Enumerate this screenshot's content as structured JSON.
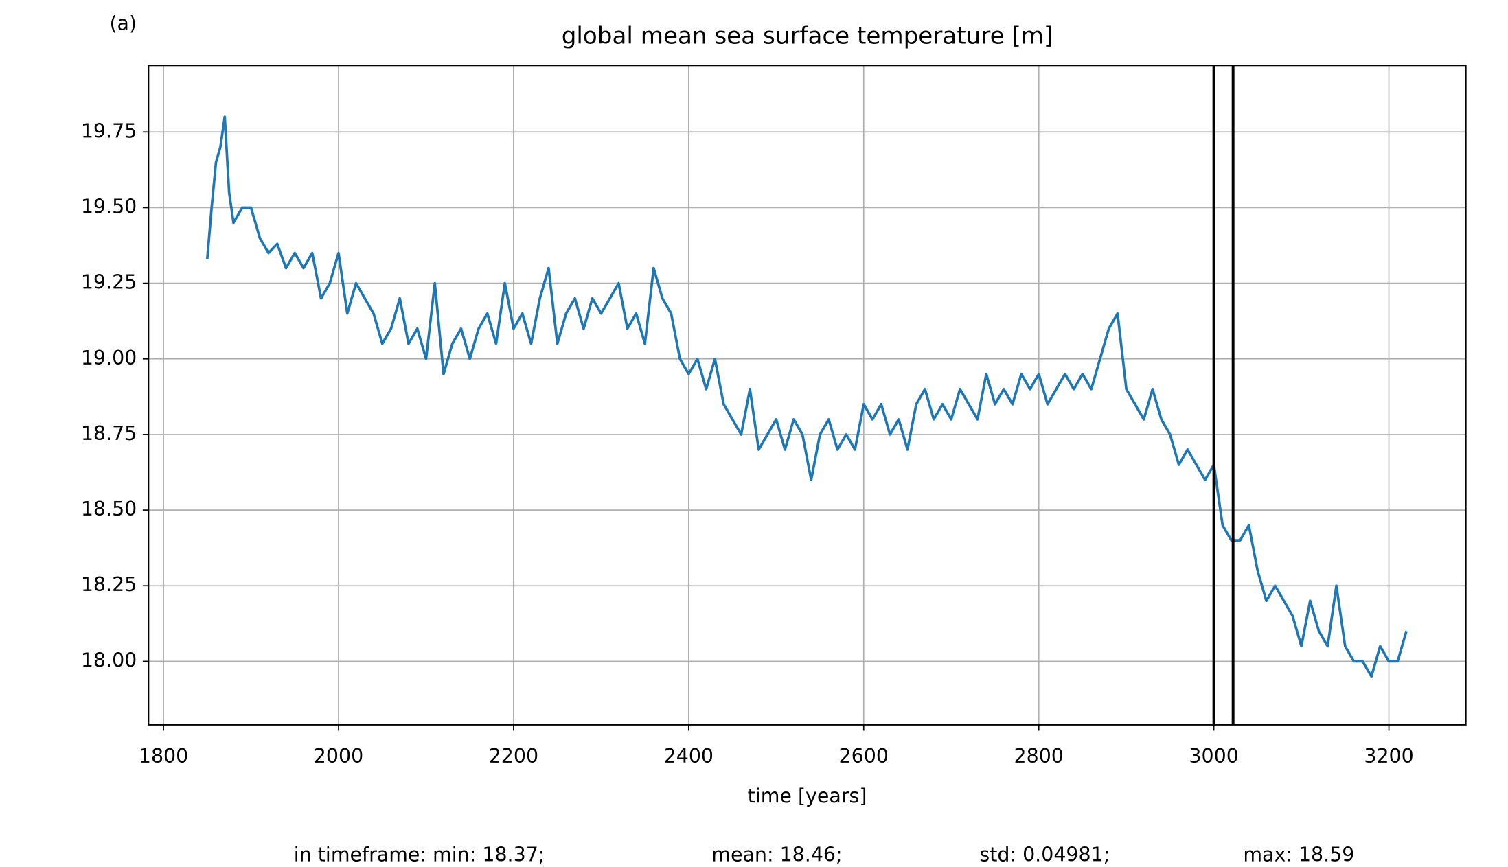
{
  "chart_data": {
    "type": "line",
    "panel_label": "(a)",
    "title": "global mean sea surface temperature [m]",
    "x_label": "time [years]",
    "footer": [
      "in timeframe: min: 18.37;",
      "mean: 18.46;",
      "std: 0.04981;",
      "max: 18.59"
    ],
    "x": [
      1850,
      1855,
      1860,
      1865,
      1870,
      1875,
      1880,
      1890,
      1900,
      1910,
      1920,
      1930,
      1940,
      1950,
      1960,
      1970,
      1980,
      1990,
      2000,
      2010,
      2020,
      2030,
      2040,
      2050,
      2060,
      2070,
      2080,
      2090,
      2100,
      2110,
      2120,
      2130,
      2140,
      2150,
      2160,
      2170,
      2180,
      2190,
      2200,
      2210,
      2220,
      2230,
      2240,
      2250,
      2260,
      2270,
      2280,
      2290,
      2300,
      2310,
      2320,
      2330,
      2340,
      2350,
      2360,
      2370,
      2380,
      2390,
      2400,
      2410,
      2420,
      2430,
      2440,
      2450,
      2460,
      2470,
      2480,
      2490,
      2500,
      2510,
      2520,
      2530,
      2540,
      2550,
      2560,
      2570,
      2580,
      2590,
      2600,
      2610,
      2620,
      2630,
      2640,
      2650,
      2660,
      2670,
      2680,
      2690,
      2700,
      2710,
      2720,
      2730,
      2740,
      2750,
      2760,
      2770,
      2780,
      2790,
      2800,
      2810,
      2820,
      2830,
      2840,
      2850,
      2860,
      2870,
      2880,
      2890,
      2900,
      2910,
      2920,
      2930,
      2940,
      2950,
      2960,
      2970,
      2980,
      2990,
      3000,
      3010,
      3020,
      3030,
      3040,
      3050,
      3060,
      3070,
      3080,
      3090,
      3100,
      3110,
      3120,
      3130,
      3140,
      3150,
      3160,
      3170,
      3180,
      3190,
      3200,
      3210,
      3220
    ],
    "series": [
      {
        "color": "#1f77b4",
        "values": [
          19.33,
          19.5,
          19.65,
          19.7,
          19.8,
          19.55,
          19.45,
          19.5,
          19.5,
          19.4,
          19.35,
          19.38,
          19.3,
          19.35,
          19.3,
          19.35,
          19.2,
          19.25,
          19.35,
          19.15,
          19.25,
          19.2,
          19.15,
          19.05,
          19.1,
          19.2,
          19.05,
          19.1,
          19.0,
          19.25,
          18.95,
          19.05,
          19.1,
          19.0,
          19.1,
          19.15,
          19.05,
          19.25,
          19.1,
          19.15,
          19.05,
          19.2,
          19.3,
          19.05,
          19.15,
          19.2,
          19.1,
          19.2,
          19.15,
          19.2,
          19.25,
          19.1,
          19.15,
          19.05,
          19.3,
          19.2,
          19.15,
          19.0,
          18.95,
          19.0,
          18.9,
          19.0,
          18.85,
          18.8,
          18.75,
          18.9,
          18.7,
          18.75,
          18.8,
          18.7,
          18.8,
          18.75,
          18.6,
          18.75,
          18.8,
          18.7,
          18.75,
          18.7,
          18.85,
          18.8,
          18.85,
          18.75,
          18.8,
          18.7,
          18.85,
          18.9,
          18.8,
          18.85,
          18.8,
          18.9,
          18.85,
          18.8,
          18.95,
          18.85,
          18.9,
          18.85,
          18.95,
          18.9,
          18.95,
          18.85,
          18.9,
          18.95,
          18.9,
          18.95,
          18.9,
          19.0,
          19.1,
          19.15,
          18.9,
          18.85,
          18.8,
          18.9,
          18.8,
          18.75,
          18.65,
          18.7,
          18.65,
          18.6,
          18.65,
          18.45,
          18.4,
          18.4,
          18.45,
          18.3,
          18.2,
          18.25,
          18.2,
          18.15,
          18.05,
          18.2,
          18.1,
          18.05,
          18.25,
          18.05,
          18.0,
          18.0,
          17.95,
          18.05,
          18.0,
          18.0,
          18.1
        ]
      }
    ],
    "vlines": [
      3000,
      3022
    ],
    "vline_color": "#000000",
    "xlim": [
      1783,
      3288
    ],
    "ylim": [
      17.79,
      19.97
    ],
    "xticks": [
      1800,
      2000,
      2200,
      2400,
      2600,
      2800,
      3000,
      3200
    ],
    "yticks": [
      {
        "value": 18,
        "label": "18.00"
      },
      18.25,
      {
        "value": 18.5,
        "label": "18.50"
      },
      18.75,
      {
        "value": 19,
        "label": "19.00"
      },
      19.25,
      {
        "value": 19.5,
        "label": "19.50"
      },
      19.75
    ],
    "grid": true
  }
}
